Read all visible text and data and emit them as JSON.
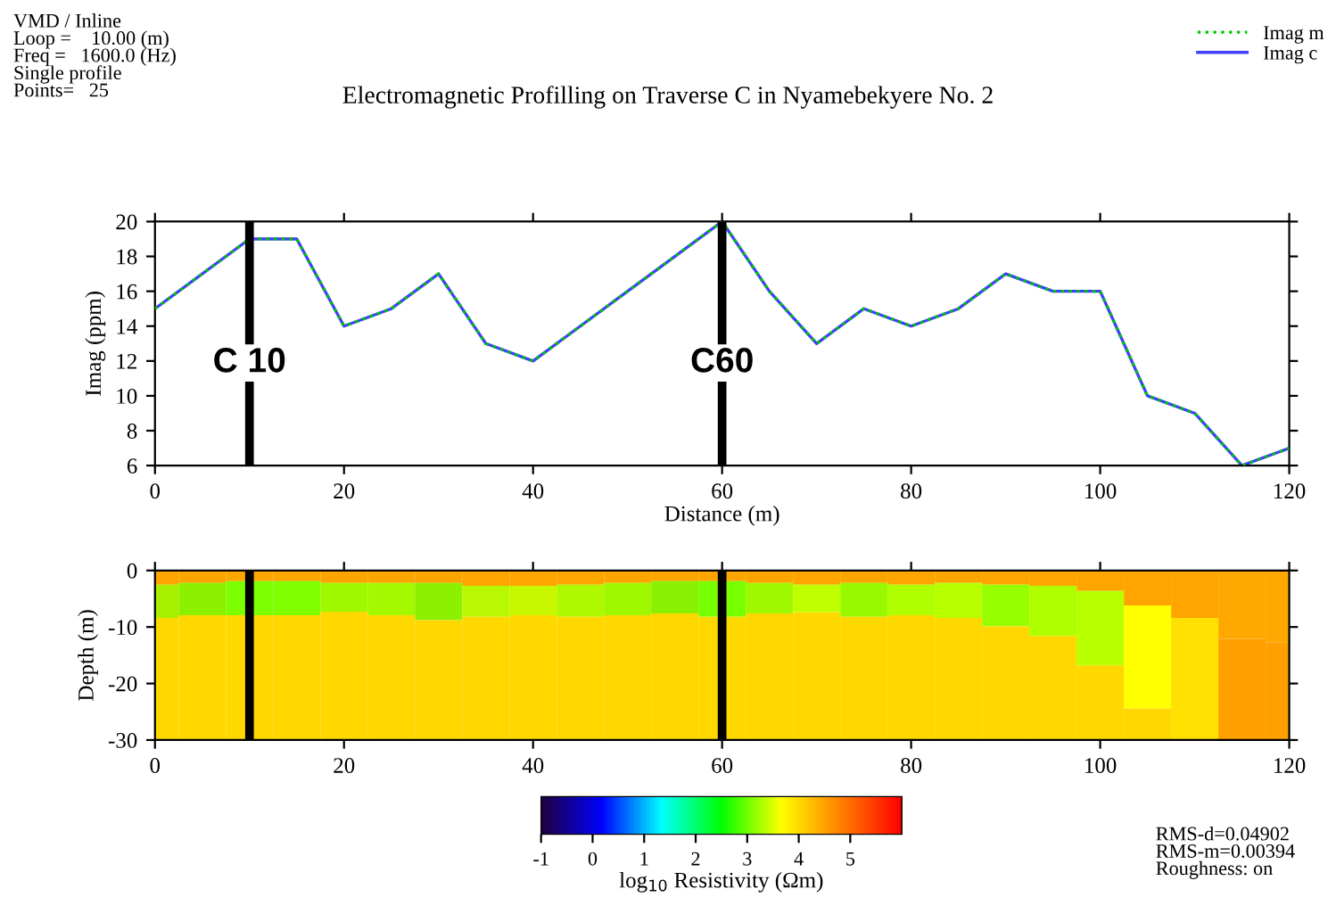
{
  "chart_data": [
    {
      "type": "line",
      "title": "Electromagnetic Profilling on Traverse C in Nyamebekyere No. 2",
      "xlabel": "Distance (m)",
      "ylabel": "Imag (ppm)",
      "x": [
        0,
        5,
        10,
        15,
        20,
        25,
        30,
        35,
        40,
        45,
        50,
        55,
        60,
        65,
        70,
        75,
        80,
        85,
        90,
        95,
        100,
        105,
        110,
        115,
        120
      ],
      "series": [
        {
          "name": "Imag m",
          "color": "#00c800",
          "line_style": "dotted",
          "values": [
            15,
            17,
            19,
            19,
            14,
            15,
            17,
            13,
            12,
            14,
            16,
            18,
            20,
            16,
            13,
            15,
            14,
            15,
            17,
            16,
            16,
            10,
            9,
            6,
            7
          ]
        },
        {
          "name": "Imag c",
          "color": "#4040ff",
          "line_style": "solid",
          "values": [
            15,
            17,
            19,
            19,
            14,
            15,
            17,
            13,
            12,
            14,
            16,
            18,
            20,
            16,
            13,
            15,
            14,
            15,
            17,
            16,
            16,
            10,
            9,
            6,
            7
          ]
        }
      ],
      "xlim": [
        0,
        120
      ],
      "xticks": [
        0,
        20,
        40,
        60,
        80,
        100,
        120
      ],
      "ylim": [
        6,
        20
      ],
      "yticks": [
        6,
        8,
        10,
        12,
        14,
        16,
        18,
        20
      ],
      "legend": "top right",
      "marker": "none",
      "ref_lines": [
        {
          "axis": "x",
          "value": 10,
          "label": "C 10",
          "color": "#000000"
        },
        {
          "axis": "x",
          "value": 60,
          "label": "C60",
          "color": "#000000"
        }
      ],
      "annotations": [
        "VMD / Inline",
        "Loop =    10.00 (m)",
        "Freq =   1600.0 (Hz)",
        "Single profile",
        "Points=   25"
      ]
    },
    {
      "type": "bar",
      "stacked": true,
      "ylabel": "Depth (m)",
      "clabel": "log$_{10}$ Resistivity (Ωm)",
      "x": [
        0,
        5,
        10,
        15,
        20,
        25,
        30,
        35,
        40,
        45,
        50,
        55,
        60,
        65,
        70,
        75,
        80,
        85,
        90,
        95,
        100,
        105,
        110,
        115,
        120
      ],
      "series": [
        {
          "values": [
            -2.5,
            -2.2,
            -1.9,
            -1.9,
            -2.2,
            -2.2,
            -2.2,
            -2.7,
            -2.7,
            -2.5,
            -2.2,
            -1.9,
            -1.9,
            -2.2,
            -2.5,
            -2.2,
            -2.5,
            -2.2,
            -2.5,
            -2.7,
            -3.6,
            -6.2,
            -8.4,
            -12.1,
            -12.7
          ],
          "colors": [
            "#ffa500",
            "#ffa500",
            "#ffa500",
            "#ffa500",
            "#ffa500",
            "#ffa500",
            "#ffa500",
            "#ffa500",
            "#ffa500",
            "#ffa500",
            "#ffa500",
            "#ffa500",
            "#ffa500",
            "#ffa500",
            "#ffa500",
            "#ffa500",
            "#ffa500",
            "#ffa500",
            "#ffa500",
            "#ffa500",
            "#ffa500",
            "#ffa500",
            "#ffa500",
            "#ffa800",
            "#ffa800"
          ]
        },
        {
          "values": [
            -5.9,
            -5.7,
            -6.0,
            -6.0,
            -5.1,
            -5.7,
            -6.6,
            -5.5,
            -5.2,
            -5.7,
            -5.7,
            -5.7,
            -6.3,
            -5.4,
            -4.9,
            -6.0,
            -5.4,
            -6.2,
            -7.4,
            -8.9,
            -13.2,
            -18.2,
            null,
            null,
            null
          ],
          "colors": [
            "#a8f000",
            "#8cf000",
            "#7cff00",
            "#80ff00",
            "#a0f800",
            "#a4f800",
            "#8cf000",
            "#b8f800",
            "#c8f800",
            "#b0f800",
            "#a0f800",
            "#88f000",
            "#78ff00",
            "#a0f800",
            "#c0ff00",
            "#98f800",
            "#b0ff00",
            "#b8ff00",
            "#98ff00",
            "#b0ff00",
            "#b8ff00",
            "#ffff00",
            null,
            null,
            null
          ]
        },
        {
          "values": [
            -21.6,
            -22.1,
            -22.1,
            -22.1,
            -22.7,
            -22.1,
            -21.2,
            -21.8,
            -22.1,
            -21.8,
            -22.1,
            -22.4,
            -21.8,
            -22.4,
            -22.6,
            -21.8,
            -22.1,
            -21.6,
            -20.1,
            -18.4,
            -13.2,
            -5.6,
            -21.6,
            -17.9,
            -17.3
          ],
          "colors": [
            "#ffd800",
            "#ffd800",
            "#ffd800",
            "#ffd800",
            "#ffd800",
            "#ffd800",
            "#ffd800",
            "#ffd800",
            "#ffd800",
            "#ffd800",
            "#ffd800",
            "#ffd800",
            "#ffd800",
            "#ffd800",
            "#ffd800",
            "#ffd800",
            "#ffd800",
            "#ffd800",
            "#ffd800",
            "#ffd800",
            "#ffd800",
            "#ffd800",
            "#ffe000",
            "#ffa000",
            "#ffa000"
          ]
        }
      ],
      "xlim": [
        0,
        120
      ],
      "xticks": [
        0,
        20,
        40,
        60,
        80,
        100,
        120
      ],
      "ylim": [
        -30,
        0
      ],
      "yticks": [
        0,
        -10,
        -20,
        -30
      ],
      "clim": [
        -1,
        6
      ],
      "cticks": [
        -1,
        0,
        1,
        2,
        3,
        4,
        5
      ],
      "ref_lines": [
        {
          "axis": "x",
          "value": 10,
          "color": "#000000"
        },
        {
          "axis": "x",
          "value": 60,
          "color": "#000000"
        }
      ],
      "annotations": [
        "RMS-d=0.04902",
        "RMS-m=0.00394",
        "Roughness: on"
      ]
    }
  ]
}
